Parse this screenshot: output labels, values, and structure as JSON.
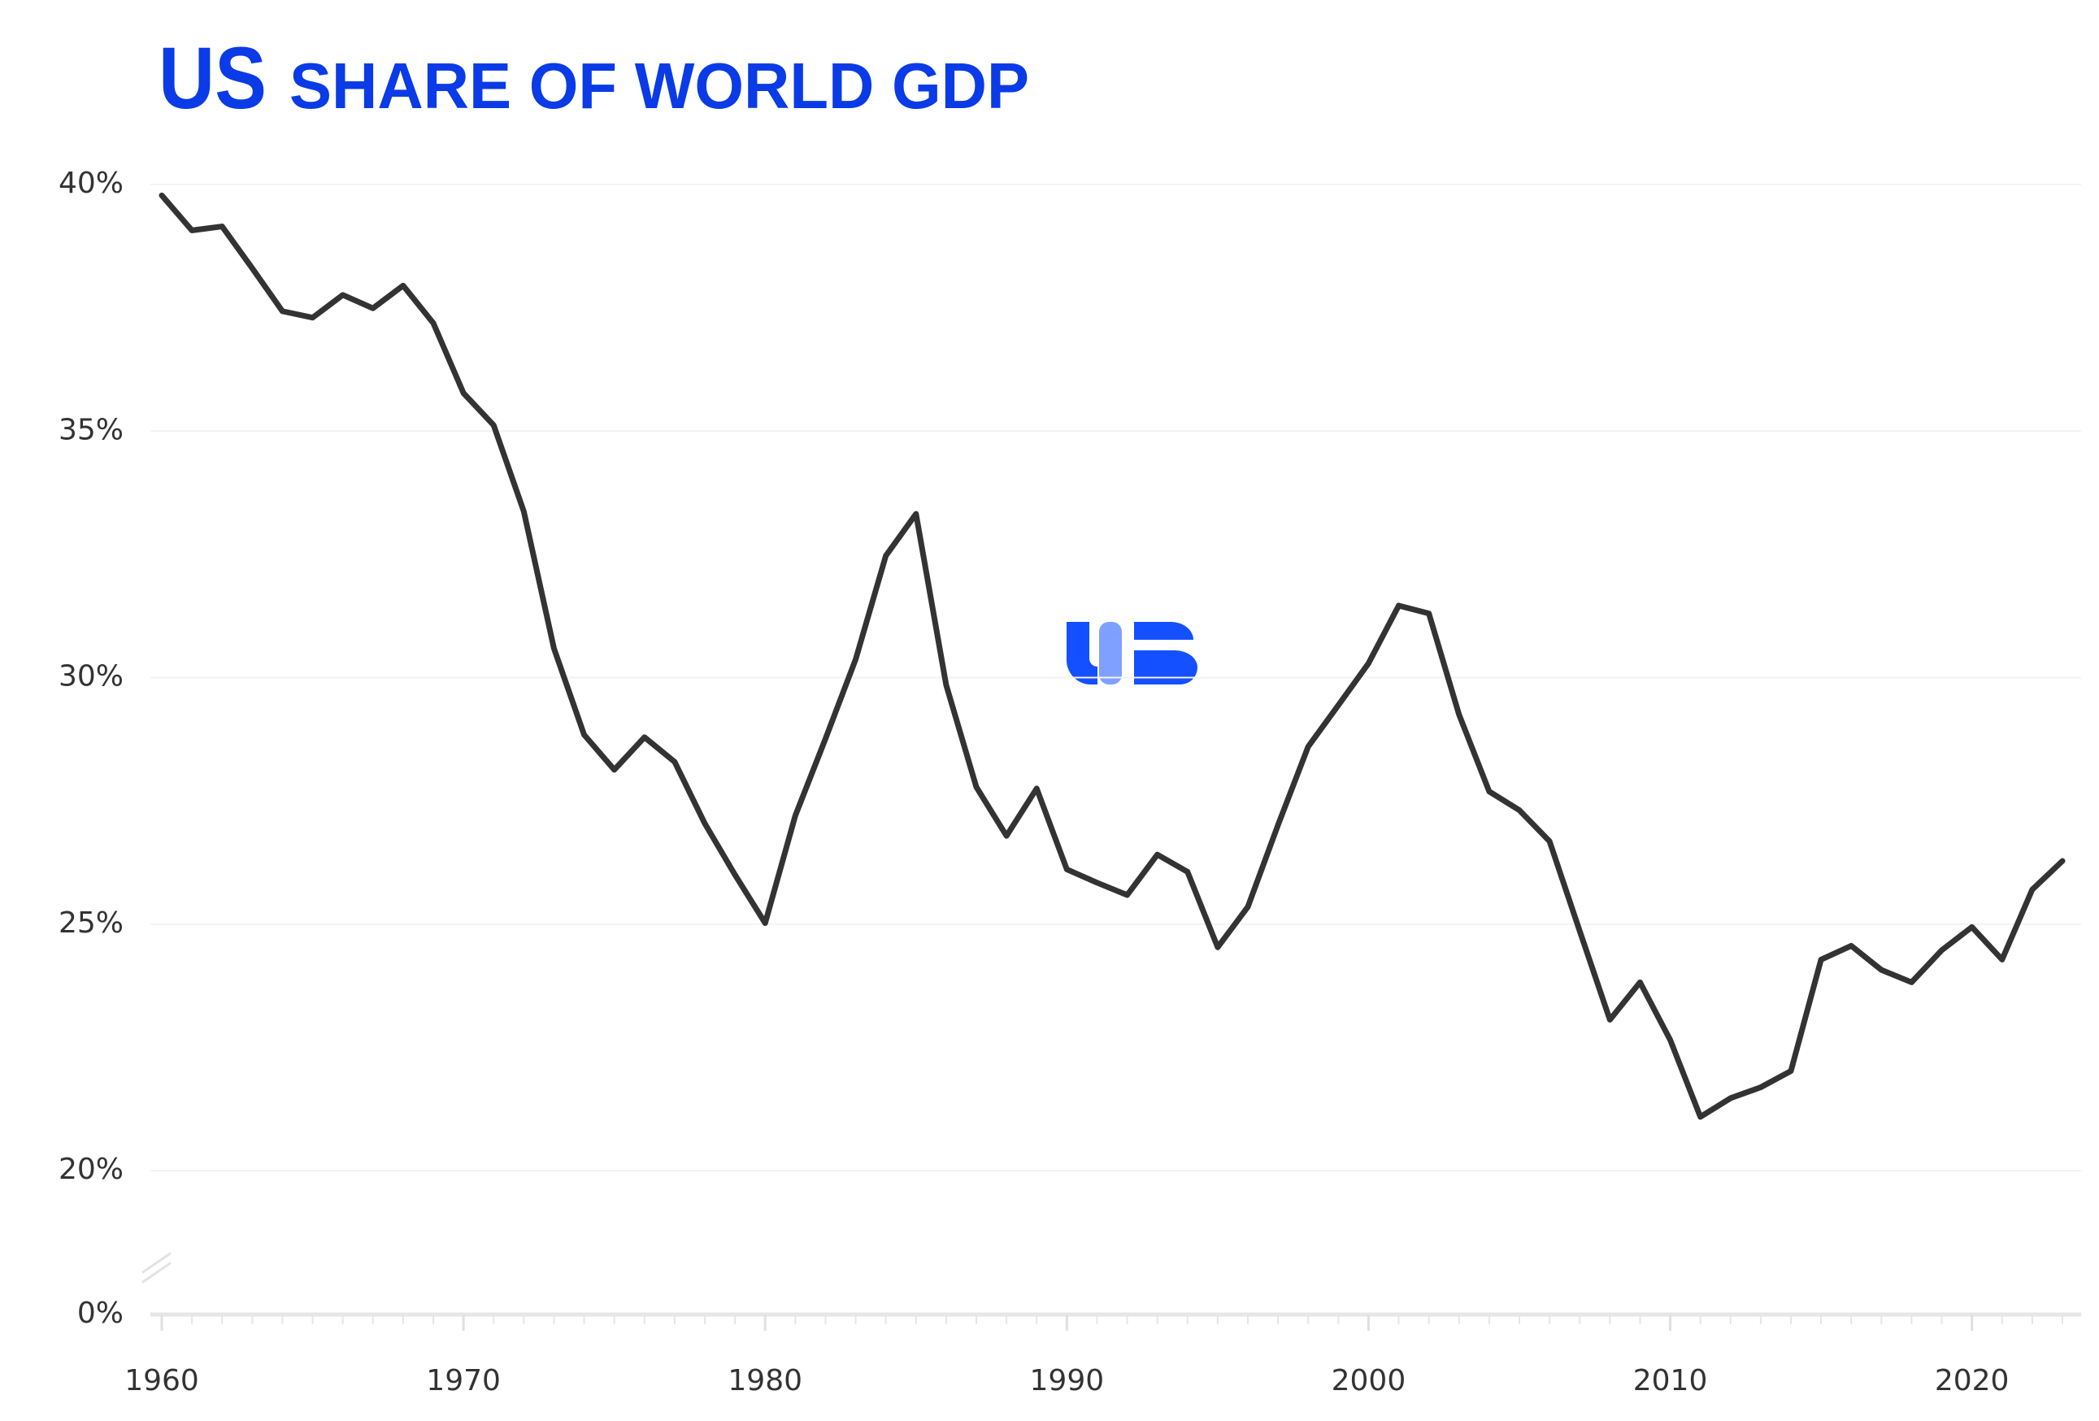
{
  "chart_data": {
    "type": "line",
    "title": [
      "US",
      "SHARE OF WORLD GDP"
    ],
    "x": [
      1960,
      1961,
      1962,
      1963,
      1964,
      1965,
      1966,
      1967,
      1968,
      1969,
      1970,
      1971,
      1972,
      1973,
      1974,
      1975,
      1976,
      1977,
      1978,
      1979,
      1980,
      1981,
      1982,
      1983,
      1984,
      1985,
      1986,
      1987,
      1988,
      1989,
      1990,
      1991,
      1992,
      1993,
      1994,
      1995,
      1996,
      1997,
      1998,
      1999,
      2000,
      2001,
      2002,
      2003,
      2004,
      2005,
      2006,
      2007,
      2008,
      2009,
      2010,
      2011,
      2012,
      2013,
      2014,
      2015,
      2016,
      2017,
      2018,
      2019,
      2020,
      2021,
      2022,
      2023
    ],
    "series": [
      {
        "name": "US share of world GDP",
        "color": "#333333",
        "values": [
          39.78,
          39.07,
          39.15,
          38.3,
          37.43,
          37.3,
          37.76,
          37.49,
          37.95,
          37.19,
          35.77,
          35.12,
          33.37,
          30.59,
          28.84,
          28.13,
          28.79,
          28.29,
          27.04,
          26.0,
          25.02,
          27.2,
          28.76,
          30.37,
          32.47,
          33.32,
          29.85,
          27.78,
          26.79,
          27.75,
          26.11,
          25.84,
          25.59,
          26.41,
          26.06,
          24.53,
          25.35,
          27.01,
          28.6,
          29.44,
          30.29,
          31.46,
          31.3,
          29.25,
          27.69,
          27.31,
          26.68,
          24.86,
          23.06,
          23.82,
          22.65,
          21.09,
          21.47,
          21.69,
          22.02,
          24.28,
          24.56,
          24.07,
          23.82,
          24.47,
          24.94,
          24.28,
          25.7,
          26.28
        ]
      }
    ],
    "xlim": [
      1960,
      2023
    ],
    "xticks": [
      1960,
      1970,
      1980,
      1990,
      2000,
      2010,
      2020
    ],
    "ylim": [
      0,
      40
    ],
    "yticks": [
      {
        "value": 0,
        "label": "0%"
      },
      {
        "value": 20,
        "label": "20%"
      },
      {
        "value": 25,
        "label": "25%"
      },
      {
        "value": 30,
        "label": "30%"
      },
      {
        "value": 35,
        "label": "35%"
      },
      {
        "value": 40,
        "label": "40%"
      }
    ],
    "axis_break": true,
    "grid": true
  }
}
